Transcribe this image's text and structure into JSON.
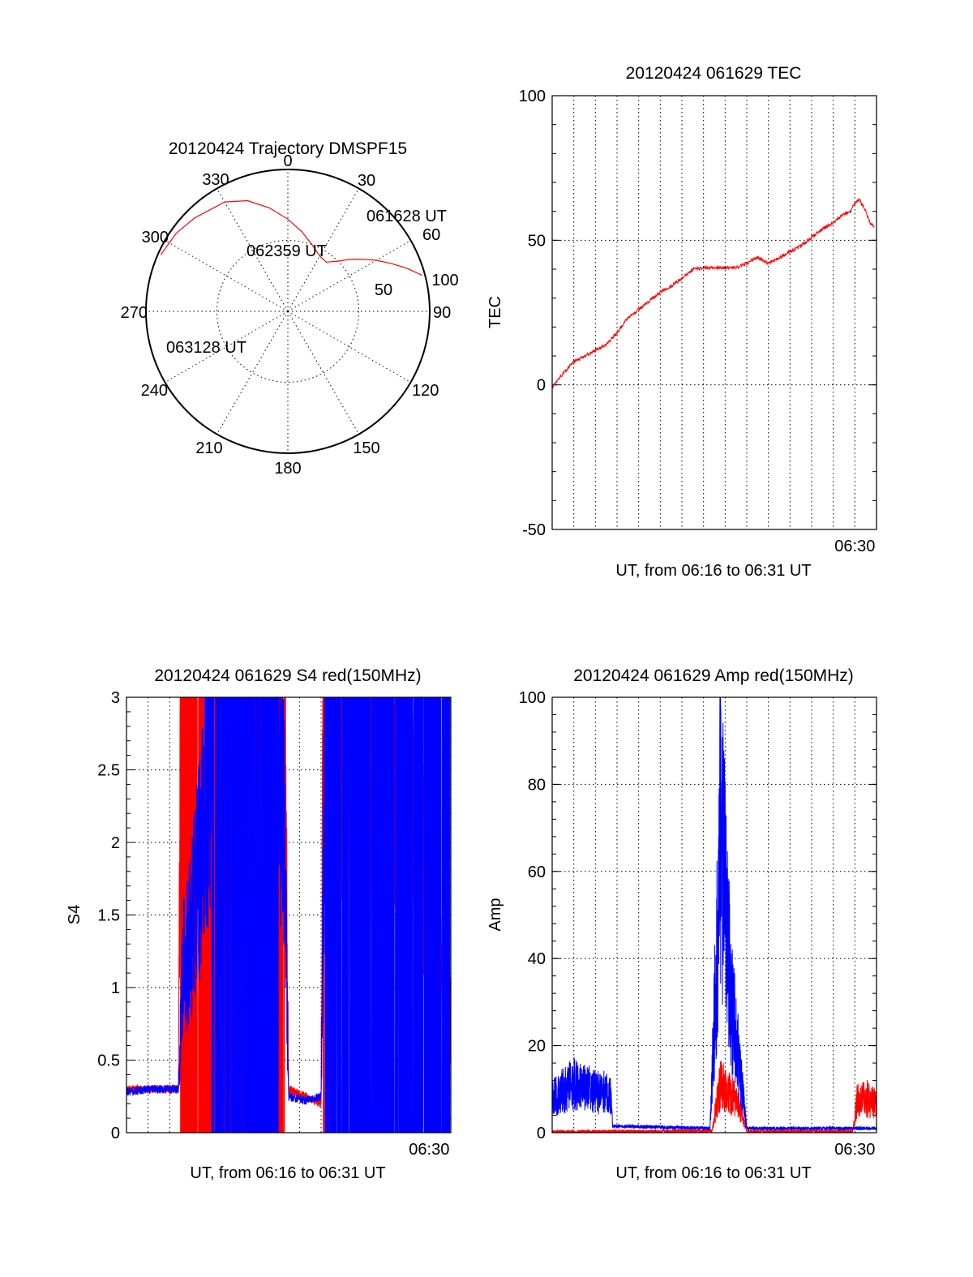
{
  "colors": {
    "red": "#ff0000",
    "blue": "#0000ff",
    "axis": "#000000"
  },
  "chart_data": [
    {
      "id": "trajectory",
      "type": "polar",
      "title": "20120424 Trajectory DMSPF15",
      "angle_labels": [
        "0",
        "30",
        "60",
        "90",
        "120",
        "150",
        "180",
        "210",
        "240",
        "270",
        "300",
        "330"
      ],
      "radial_labels": [
        "50",
        "100"
      ],
      "series": [
        {
          "color": "red",
          "points": [
            [
              75,
              98
            ],
            [
              70,
              89
            ],
            [
              65,
              80
            ],
            [
              60,
              72
            ],
            [
              55,
              64
            ],
            [
              50,
              57
            ],
            [
              45,
              50
            ],
            [
              38,
              44
            ],
            [
              30,
              45
            ],
            [
              20,
              50
            ],
            [
              10,
              57
            ],
            [
              0,
              65
            ],
            [
              -10,
              74
            ],
            [
              -20,
              83
            ],
            [
              -30,
              89
            ],
            [
              -45,
              93
            ],
            [
              -55,
              96
            ],
            [
              -66,
              98
            ]
          ]
        }
      ],
      "annotations": [
        "061628 UT",
        "062359 UT",
        "063128 UT"
      ]
    },
    {
      "id": "tec",
      "type": "line",
      "title": "20120424 061629 TEC",
      "ylabel": "TEC",
      "xlabel": "UT, from 06:16 to 06:31 UT",
      "xtick_labels": [
        "06:30"
      ],
      "ylim": [
        -50,
        100
      ],
      "ytick_labels": [
        "-50",
        "0",
        "50",
        "100"
      ],
      "grid": true,
      "series": [
        {
          "color": "red",
          "x": [
            0,
            0.5,
            1,
            1.5,
            2,
            2.5,
            3,
            3.5,
            4,
            4.5,
            5,
            5.5,
            6,
            6.5,
            7,
            7.5,
            8,
            8.5,
            9,
            9.5,
            10,
            10.5,
            11,
            11.5,
            12,
            12.5,
            13,
            13.3,
            13.5,
            13.8,
            14,
            14.2,
            14.5,
            14.7,
            14.9
          ],
          "y": [
            -1,
            4,
            8,
            10,
            12,
            14,
            18,
            23,
            26,
            29,
            32,
            34,
            37,
            40,
            40.5,
            40.5,
            40.5,
            40.5,
            42,
            44,
            42,
            44,
            46,
            48,
            51,
            54,
            56,
            58,
            59,
            60,
            63,
            64,
            60,
            56,
            55
          ]
        }
      ]
    },
    {
      "id": "s4",
      "type": "line",
      "title": "20120424 061629 S4 red(150MHz)",
      "ylabel": "S4",
      "xlabel": "UT, from 06:16 to 06:31 UT",
      "xtick_labels": [
        "06:30"
      ],
      "ylim": [
        0,
        3
      ],
      "ytick_labels": [
        "0",
        "0.5",
        "1",
        "1.5",
        "2",
        "2.5",
        "3"
      ],
      "grid": true,
      "series": [
        {
          "color": "red",
          "x": [
            0,
            2.4,
            2.5,
            7.3,
            7.5,
            9.0,
            9.1,
            13.6,
            14.0,
            14.3,
            14.6,
            15.0
          ],
          "y": [
            0.3,
            0.3,
            3,
            3,
            0.3,
            0.2,
            3,
            2.2,
            1.6,
            0.2,
            1.2,
            0.8
          ]
        },
        {
          "color": "blue",
          "x": [
            0,
            1,
            2.4,
            2.6,
            3.0,
            3.5,
            4.0,
            7.0,
            7.3,
            7.5,
            8.2,
            9.0,
            9.2,
            15.0
          ],
          "y": [
            0.28,
            0.3,
            0.3,
            1.1,
            1.4,
            2.0,
            3,
            3,
            2.0,
            0.25,
            0.22,
            0.25,
            3,
            3
          ]
        }
      ]
    },
    {
      "id": "amp",
      "type": "line",
      "title": "20120424 061629 Amp red(150MHz)",
      "ylabel": "Amp",
      "xlabel": "UT, from 06:16 to 06:31 UT",
      "xtick_labels": [
        "06:30"
      ],
      "ylim": [
        0,
        100
      ],
      "ytick_labels": [
        "0",
        "20",
        "40",
        "60",
        "80",
        "100"
      ],
      "grid": true,
      "series": [
        {
          "color": "red",
          "x": [
            0,
            7.4,
            7.6,
            7.8,
            8.0,
            8.4,
            8.8,
            9.0,
            13.9,
            14.1,
            14.5,
            15.0
          ],
          "y": [
            0.2,
            0.4,
            8,
            14,
            12,
            10,
            5,
            0.3,
            0.3,
            9,
            10,
            8
          ]
        },
        {
          "color": "blue",
          "x": [
            0,
            0.5,
            1,
            2,
            2.7,
            2.8,
            7.3,
            7.6,
            7.8,
            8.0,
            8.2,
            8.4,
            8.6,
            8.8,
            9.0,
            15.0
          ],
          "y": [
            10,
            12,
            14,
            12,
            11,
            1.5,
            1.0,
            50,
            90,
            65,
            45,
            32,
            22,
            12,
            1.0,
            1.0
          ]
        }
      ]
    }
  ]
}
